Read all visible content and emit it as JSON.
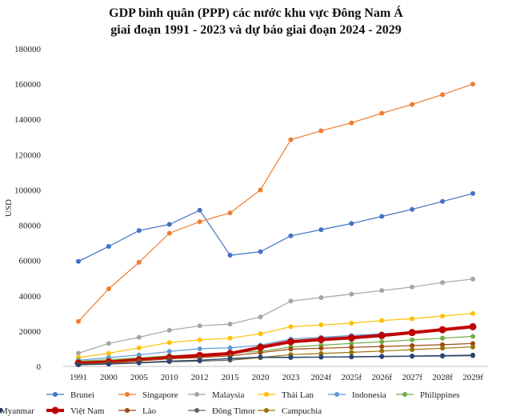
{
  "chart_data": {
    "type": "line",
    "title_line1": "GDP bình quân (PPP) các nước khu vực Đông Nam Á",
    "title_line2": "giai đoạn 1991 - 2023 và dự báo giai đoạn 2024 - 2029",
    "ylabel": "USD",
    "xlabel": "",
    "ylim": [
      0,
      180000
    ],
    "yticks": [
      0,
      20000,
      40000,
      60000,
      80000,
      100000,
      120000,
      140000,
      160000,
      180000
    ],
    "grid": false,
    "legend_position": "bottom",
    "categories": [
      "1991",
      "2000",
      "2005",
      "2010",
      "2012",
      "2015",
      "2020",
      "2023",
      "2024f",
      "2025f",
      "2026f",
      "2027f",
      "2028f",
      "2029f"
    ],
    "series": [
      {
        "name": "Brunei",
        "color": "#4472c4",
        "values": [
          59500,
          68000,
          77000,
          80500,
          88500,
          63000,
          65000,
          74000,
          77500,
          81000,
          85000,
          89000,
          93500,
          98000
        ]
      },
      {
        "name": "Singapore",
        "color": "#ed7d31",
        "values": [
          25500,
          44000,
          59000,
          75500,
          82000,
          87000,
          100000,
          128500,
          133500,
          138000,
          143500,
          148500,
          154000,
          160000
        ]
      },
      {
        "name": "Malaysia",
        "color": "#a5a5a5",
        "values": [
          7500,
          13000,
          16500,
          20500,
          23000,
          24000,
          28000,
          37000,
          39000,
          41000,
          43000,
          45000,
          47500,
          49500
        ]
      },
      {
        "name": "Thái Lan",
        "color": "#ffc000",
        "values": [
          5000,
          7500,
          10500,
          13500,
          15000,
          16000,
          18500,
          22500,
          23500,
          24500,
          26000,
          27000,
          28500,
          30000
        ]
      },
      {
        "name": "Indonesia",
        "color": "#5b9bd5",
        "values": [
          3500,
          5000,
          6500,
          8500,
          10000,
          10500,
          12000,
          15500,
          16500,
          17500,
          18500,
          19500,
          20500,
          22000
        ]
      },
      {
        "name": "Philippines",
        "color": "#70ad47",
        "values": [
          3000,
          3800,
          4800,
          6000,
          6800,
          7800,
          8500,
          11000,
          12000,
          13000,
          14000,
          15000,
          16000,
          17000
        ]
      },
      {
        "name": "Việt Nam",
        "color": "#c00000",
        "values": [
          1800,
          2500,
          3700,
          5000,
          6200,
          7300,
          10800,
          14000,
          15200,
          16200,
          17500,
          19200,
          20800,
          22500
        ]
      },
      {
        "name": "Lào",
        "color": "#9e480e",
        "values": [
          1200,
          2200,
          3200,
          4300,
          5000,
          6000,
          7800,
          9800,
          10300,
          10800,
          11300,
          11800,
          12300,
          13000
        ]
      },
      {
        "name": "Đông Timor",
        "color": "#636363",
        "values": [
          1000,
          1500,
          2000,
          2600,
          3000,
          3500,
          5000,
          5000,
          5200,
          5300,
          5500,
          5700,
          5800,
          6000
        ]
      },
      {
        "name": "Campuchia",
        "color": "#997300",
        "values": [
          1000,
          1500,
          2200,
          3000,
          3600,
          4300,
          5000,
          6700,
          7300,
          8000,
          8700,
          9500,
          10300,
          11000
        ]
      },
      {
        "name": "Myanmar",
        "color": "#264478",
        "values": [
          900,
          1300,
          2000,
          3000,
          3500,
          4500,
          5300,
          5200,
          5300,
          5500,
          5700,
          5900,
          6100,
          6400
        ]
      }
    ]
  }
}
